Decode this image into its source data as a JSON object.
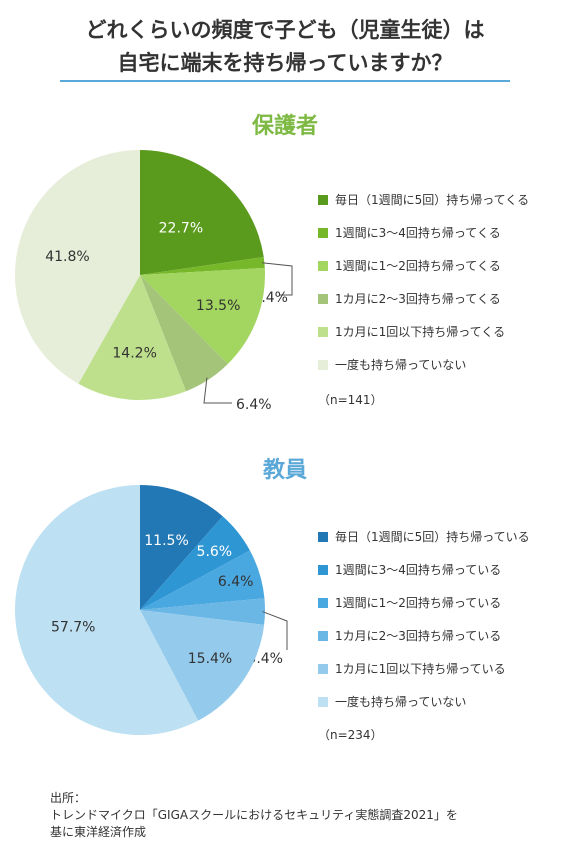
{
  "title_lines": [
    "どれくらいの頻度で子ども（児童生徒）は",
    "自宅に端末を持ち帰っていますか？"
  ],
  "source_lines": [
    "出所：",
    "トレンドマイクロ「GIGAスクールにおけるセキュリティ実態調査2021」を",
    "基に東洋経済作成"
  ],
  "chart_data": [
    {
      "type": "pie",
      "title": "保護者",
      "title_color": "#7db943",
      "sample_size": "（n=141）",
      "slices": [
        {
          "label": "毎日（1週間に5回）持ち帰ってくる",
          "value": 22.7,
          "value_label": "22.7%",
          "color": "#5a9a1c",
          "label_color": "#ffffff"
        },
        {
          "label": "1週間に3〜4回持ち帰ってくる",
          "value": 1.4,
          "value_label": "1.4%",
          "color": "#76b82a",
          "label_color": "#333333"
        },
        {
          "label": "1週間に1〜2回持ち帰ってくる",
          "value": 13.5,
          "value_label": "13.5%",
          "color": "#a3d660",
          "label_color": "#333333"
        },
        {
          "label": "1カ月に2〜3回持ち帰ってくる",
          "value": 6.4,
          "value_label": "6.4%",
          "color": "#a4c47a",
          "label_color": "#333333"
        },
        {
          "label": "1カ月に1回以下持ち帰ってくる",
          "value": 14.2,
          "value_label": "14.2%",
          "color": "#bee08c",
          "label_color": "#333333"
        },
        {
          "label": "一度も持ち帰っていない",
          "value": 41.8,
          "value_label": "41.8%",
          "color": "#e6edd8",
          "label_color": "#333333"
        }
      ]
    },
    {
      "type": "pie",
      "title": "教員",
      "title_color": "#5aa8d8",
      "sample_size": "（n=234）",
      "slices": [
        {
          "label": "毎日（1週間に5回）持ち帰っている",
          "value": 11.5,
          "value_label": "11.5%",
          "color": "#2278b4",
          "label_color": "#ffffff"
        },
        {
          "label": "1週間に3〜4回持ち帰っている",
          "value": 5.6,
          "value_label": "5.6%",
          "color": "#2f96d4",
          "label_color": "#ffffff"
        },
        {
          "label": "1週間に1〜2回持ち帰っている",
          "value": 6.4,
          "value_label": "6.4%",
          "color": "#4aa8e0",
          "label_color": "#333333"
        },
        {
          "label": "1カ月に2〜3回持ち帰っている",
          "value": 3.4,
          "value_label": "3.4%",
          "color": "#6ab6e4",
          "label_color": "#333333"
        },
        {
          "label": "1カ月に1回以下持ち帰っている",
          "value": 15.4,
          "value_label": "15.4%",
          "color": "#94cbec",
          "label_color": "#333333"
        },
        {
          "label": "一度も持ち帰っていない",
          "value": 57.7,
          "value_label": "57.7%",
          "color": "#bde0f2",
          "label_color": "#333333"
        }
      ]
    }
  ]
}
